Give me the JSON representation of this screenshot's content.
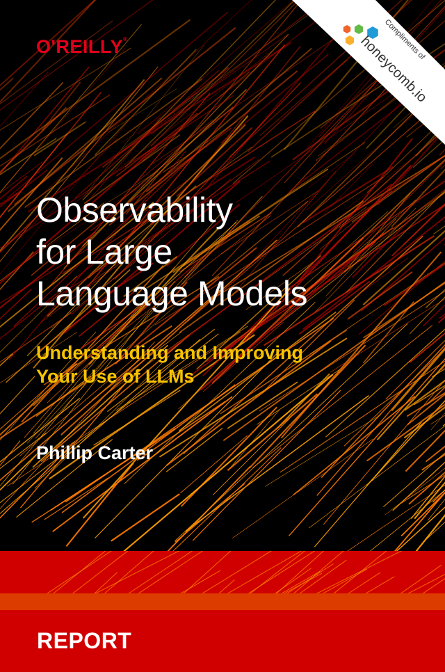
{
  "publisher": {
    "name": "O'REILLY",
    "mark": "®"
  },
  "sponsor": {
    "prefix": "Compliments of",
    "name": "honeycomb.io",
    "logo_colors": [
      "#f0632a",
      "#64ba47",
      "#1f9bd8",
      "#fbb02d"
    ]
  },
  "title_lines": [
    "Observability",
    "for Large",
    "Language Models"
  ],
  "subtitle_lines": [
    "Understanding and Improving",
    "Your Use of LLMs"
  ],
  "author": "Phillip Carter",
  "type_label": "REPORT",
  "colors": {
    "brand_red": "#d10000",
    "accent_orange": "#dc3c00",
    "subtitle_yellow": "#f5c400",
    "publisher_red": "#e3001b"
  }
}
